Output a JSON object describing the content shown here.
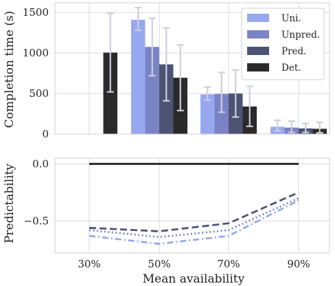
{
  "figure": {
    "xlabel": "Mean availability"
  },
  "colors": {
    "Uni.": "#98a8f0",
    "Unpred.": "#7a84c4",
    "Pred.": "#4c5373",
    "Det.": "#2a2a2a",
    "error_bar": "#cfcfdc",
    "grid": "#dadada",
    "panel_border": "#cfcfcf"
  },
  "chart_data": [
    {
      "type": "bar",
      "ylabel": "Completion time (s)",
      "ylim": [
        0,
        1620
      ],
      "yticks": [
        0,
        500,
        1000,
        1500
      ],
      "ytick_labels": [
        "0",
        "500",
        "1000",
        "1500"
      ],
      "grid": true,
      "legend": "top-right",
      "categories": [
        "30%",
        "50%",
        "70%",
        "90%"
      ],
      "series": [
        {
          "name": "Uni.",
          "values": [
            null,
            1410,
            490,
            90
          ],
          "err_low": [
            null,
            1280,
            420,
            40
          ],
          "err_high": [
            null,
            1560,
            580,
            170
          ]
        },
        {
          "name": "Unpred.",
          "values": [
            null,
            1075,
            495,
            80
          ],
          "err_low": [
            null,
            720,
            270,
            20
          ],
          "err_high": [
            null,
            1430,
            760,
            160
          ]
        },
        {
          "name": "Pred.",
          "values": [
            null,
            860,
            500,
            70
          ],
          "err_low": [
            null,
            410,
            210,
            20
          ],
          "err_high": [
            null,
            1310,
            790,
            130
          ]
        },
        {
          "name": "Det.",
          "values": [
            1005,
            695,
            340,
            65
          ],
          "err_low": [
            520,
            290,
            95,
            15
          ],
          "err_high": [
            1490,
            1100,
            590,
            145
          ]
        }
      ]
    },
    {
      "type": "line",
      "ylabel": "Predictability",
      "ylim": [
        -0.78,
        0.05
      ],
      "yticks": [
        0.0,
        -0.5
      ],
      "ytick_labels": [
        "0.0",
        "−0.5"
      ],
      "grid": true,
      "x": [
        "30%",
        "50%",
        "70%",
        "90%"
      ],
      "series": [
        {
          "name": "Det.",
          "style": "solid",
          "values": [
            0.0,
            0.0,
            0.0,
            0.0
          ]
        },
        {
          "name": "Pred.",
          "style": "dashed",
          "values": [
            -0.56,
            -0.59,
            -0.52,
            -0.25
          ]
        },
        {
          "name": "Unpred.",
          "style": "dotted",
          "values": [
            -0.58,
            -0.64,
            -0.58,
            -0.3
          ]
        },
        {
          "name": "Uni.",
          "style": "dashdot",
          "values": [
            -0.63,
            -0.7,
            -0.63,
            -0.32
          ]
        }
      ]
    }
  ]
}
